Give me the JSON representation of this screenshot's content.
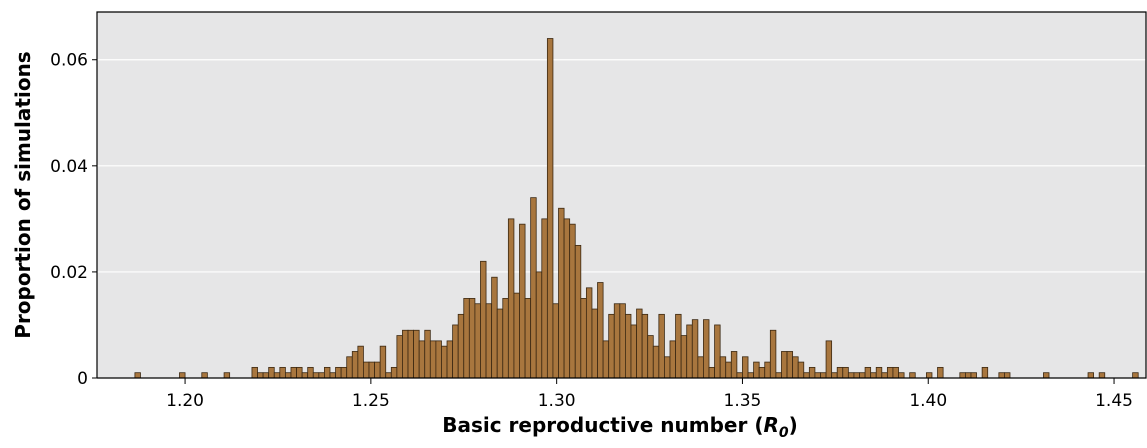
{
  "chart_data": {
    "type": "histogram",
    "x_label": {
      "text": "Basic reproductive number (",
      "symbol": "R",
      "subscript": "0",
      "close": ")"
    },
    "y_label": "Proportion of simulations",
    "color": "#a8763e",
    "edge_color": "#3b2812",
    "grid": true,
    "xlim": [
      1.1763,
      1.4586
    ],
    "ylim": [
      0,
      0.069
    ],
    "xticks": [
      {
        "value": 1.2,
        "label": "1.20"
      },
      1.25,
      {
        "value": 1.3,
        "label": "1.30"
      },
      1.35,
      {
        "value": 1.4,
        "label": "1.40"
      },
      1.45
    ],
    "yticks": [
      0,
      0.02,
      0.04,
      0.06
    ],
    "bins": [
      1.1865,
      1.188,
      1.1895,
      1.191,
      1.1925,
      1.194,
      1.1955,
      1.197,
      1.1985,
      1.2,
      1.2015,
      1.203,
      1.2045,
      1.206,
      1.2075,
      1.209,
      1.2105,
      1.212,
      1.2135,
      1.215,
      1.2165,
      1.218,
      1.2195,
      1.221,
      1.2225,
      1.224,
      1.2255,
      1.227,
      1.2285,
      1.23,
      1.2315,
      1.233,
      1.2345,
      1.236,
      1.2375,
      1.239,
      1.2405,
      1.242,
      1.2435,
      1.245,
      1.2465,
      1.248,
      1.2495,
      1.251,
      1.2525,
      1.254,
      1.2555,
      1.257,
      1.2585,
      1.26,
      1.2615,
      1.263,
      1.2645,
      1.266,
      1.2675,
      1.269,
      1.2705,
      1.272,
      1.2735,
      1.275,
      1.2765,
      1.278,
      1.2795,
      1.281,
      1.2825,
      1.284,
      1.2855,
      1.287,
      1.2885,
      1.29,
      1.2915,
      1.293,
      1.2945,
      1.296,
      1.2975,
      1.299,
      1.3005,
      1.302,
      1.3035,
      1.305,
      1.3065,
      1.308,
      1.3095,
      1.311,
      1.3125,
      1.314,
      1.3155,
      1.317,
      1.3185,
      1.32,
      1.3215,
      1.323,
      1.3245,
      1.326,
      1.3275,
      1.329,
      1.3305,
      1.332,
      1.3335,
      1.335,
      1.3365,
      1.338,
      1.3395,
      1.341,
      1.3425,
      1.344,
      1.3455,
      1.347,
      1.3485,
      1.35,
      1.3515,
      1.353,
      1.3545,
      1.356,
      1.3575,
      1.359,
      1.3605,
      1.362,
      1.3635,
      1.365,
      1.3665,
      1.368,
      1.3695,
      1.371,
      1.3725,
      1.374,
      1.3755,
      1.377,
      1.3785,
      1.38,
      1.3815,
      1.383,
      1.3845,
      1.386,
      1.3875,
      1.389,
      1.3905,
      1.392,
      1.3935,
      1.395,
      1.3965,
      1.398,
      1.3995,
      1.401,
      1.4025,
      1.404,
      1.4055,
      1.407,
      1.4085,
      1.41,
      1.4115,
      1.413,
      1.4145,
      1.416,
      1.4175,
      1.419,
      1.4205,
      1.422,
      1.4235,
      1.425,
      1.4265,
      1.428,
      1.4295,
      1.431,
      1.4325,
      1.434,
      1.4355,
      1.437,
      1.4385,
      1.44,
      1.4415,
      1.443,
      1.4445,
      1.446,
      1.4475,
      1.449,
      1.4505,
      1.452,
      1.4535,
      1.455,
      1.4565
    ],
    "values": [
      0.001,
      0,
      0,
      0,
      0,
      0,
      0,
      0,
      0.001,
      0,
      0,
      0,
      0.001,
      0,
      0,
      0,
      0.001,
      0,
      0,
      0,
      0,
      0.002,
      0.001,
      0.001,
      0.002,
      0.001,
      0.002,
      0.001,
      0.002,
      0.002,
      0.001,
      0.002,
      0.001,
      0.001,
      0.002,
      0.001,
      0.002,
      0.002,
      0.004,
      0.005,
      0.006,
      0.003,
      0.003,
      0.003,
      0.006,
      0.001,
      0.002,
      0.008,
      0.009,
      0.009,
      0.009,
      0.007,
      0.009,
      0.007,
      0.007,
      0.006,
      0.007,
      0.01,
      0.012,
      0.015,
      0.015,
      0.014,
      0.022,
      0.014,
      0.019,
      0.013,
      0.015,
      0.03,
      0.016,
      0.029,
      0.015,
      0.034,
      0.02,
      0.03,
      0.064,
      0.014,
      0.032,
      0.03,
      0.029,
      0.025,
      0.015,
      0.017,
      0.013,
      0.018,
      0.007,
      0.012,
      0.014,
      0.014,
      0.012,
      0.01,
      0.013,
      0.012,
      0.008,
      0.006,
      0.012,
      0.004,
      0.007,
      0.012,
      0.008,
      0.01,
      0.011,
      0.004,
      0.011,
      0.002,
      0.01,
      0.004,
      0.003,
      0.005,
      0.001,
      0.004,
      0.001,
      0.003,
      0.002,
      0.003,
      0.009,
      0.001,
      0.005,
      0.005,
      0.004,
      0.003,
      0.001,
      0.002,
      0.001,
      0.001,
      0.007,
      0.001,
      0.002,
      0.002,
      0.001,
      0.001,
      0.001,
      0.002,
      0.001,
      0.002,
      0.001,
      0.002,
      0.002,
      0.001,
      0,
      0.001,
      0,
      0,
      0.001,
      0,
      0.002,
      0,
      0,
      0,
      0.001,
      0.001,
      0.001,
      0,
      0.002,
      0,
      0,
      0.001,
      0.001,
      0,
      0,
      0,
      0,
      0,
      0,
      0.001,
      0,
      0,
      0,
      0,
      0,
      0,
      0,
      0.001,
      0,
      0.001,
      0,
      0,
      0,
      0,
      0,
      0.001
    ]
  }
}
